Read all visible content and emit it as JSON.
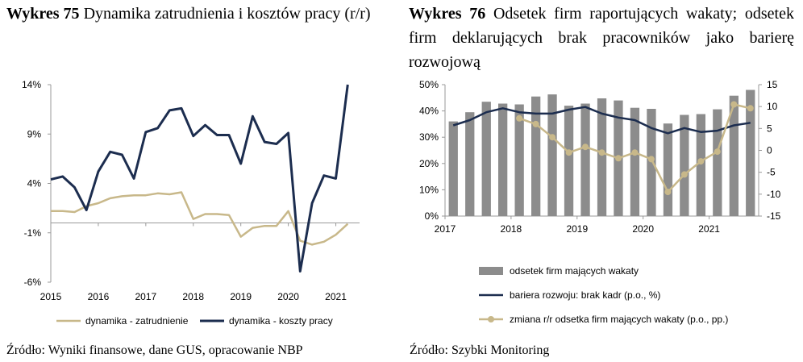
{
  "charts": [
    {
      "number": "Wykres 75",
      "title": "Dynamika zatrudnienia i kosztów pracy (r/r)",
      "source": "Źródło: Wyniki finansowe, dane GUS, opracowanie NBP"
    },
    {
      "number": "Wykres 76",
      "title": "Odsetek firm raportujących wakaty; odsetek firm deklarujących brak pracowników jako barierę rozwojową",
      "source": "Źródło: Szybki Monitoring"
    }
  ],
  "chart_data": [
    {
      "type": "line",
      "title": "Dynamika zatrudnienia i kosztów pracy (r/r)",
      "x_ticks": [
        "2015",
        "2016",
        "2017",
        "2018",
        "2019",
        "2020",
        "2021"
      ],
      "y_ticks": [
        "14%",
        "9%",
        "4%",
        "-1%",
        "-6%"
      ],
      "ylim": [
        -6,
        14
      ],
      "x_range": [
        2015.0,
        2021.5
      ],
      "legend_position": "bottom",
      "colors": {
        "dynamika - zatrudnienie": "#c8b88a",
        "dynamika - koszty pracy": "#1c2d4f"
      },
      "series": [
        {
          "name": "dynamika - zatrudnienie",
          "x": [
            2015.0,
            2015.25,
            2015.5,
            2015.75,
            2016.0,
            2016.25,
            2016.5,
            2016.75,
            2017.0,
            2017.25,
            2017.5,
            2017.75,
            2018.0,
            2018.25,
            2018.5,
            2018.75,
            2019.0,
            2019.25,
            2019.5,
            2019.75,
            2020.0,
            2020.25,
            2020.5,
            2020.75,
            2021.0,
            2021.25
          ],
          "values": [
            1.2,
            1.2,
            1.1,
            1.7,
            2.0,
            2.5,
            2.7,
            2.8,
            2.8,
            3.0,
            2.9,
            3.1,
            0.4,
            0.9,
            0.9,
            0.8,
            -1.4,
            -0.5,
            -0.3,
            -0.3,
            1.2,
            -1.8,
            -2.2,
            -1.9,
            -1.2,
            -0.1
          ]
        },
        {
          "name": "dynamika - koszty pracy",
          "x": [
            2015.0,
            2015.25,
            2015.5,
            2015.75,
            2016.0,
            2016.25,
            2016.5,
            2016.75,
            2017.0,
            2017.25,
            2017.5,
            2017.75,
            2018.0,
            2018.25,
            2018.5,
            2018.75,
            2019.0,
            2019.25,
            2019.5,
            2019.75,
            2020.0,
            2020.25,
            2020.5,
            2020.75,
            2021.0,
            2021.25
          ],
          "values": [
            4.4,
            4.7,
            3.6,
            1.3,
            5.2,
            7.2,
            6.9,
            4.5,
            9.2,
            9.6,
            11.4,
            11.6,
            8.8,
            9.9,
            8.9,
            8.9,
            6.0,
            10.8,
            8.2,
            8.0,
            9.1,
            -4.9,
            2.0,
            4.8,
            4.5,
            14.0
          ]
        }
      ]
    },
    {
      "type": "bar",
      "title": "Odsetek firm raportujących wakaty; odsetek firm deklarujących brak pracowników jako barierę rozwojową",
      "x_ticks": [
        "2017",
        "2018",
        "2019",
        "2020",
        "2021"
      ],
      "y_left_ticks": [
        "50%",
        "40%",
        "30%",
        "20%",
        "10%",
        "0%"
      ],
      "y_right_ticks": [
        "15",
        "10",
        "5",
        "0",
        "-5",
        "-10",
        "-15"
      ],
      "ylim_left": [
        0,
        50
      ],
      "ylim_right": [
        -15,
        15
      ],
      "x_range": [
        2017.0,
        2021.75
      ],
      "legend_position": "bottom",
      "colors": {
        "odsetek firm mających wakaty": "#8c8c8c",
        "bariera rozwoju: brak kadr (p.o., %)": "#1c2d4f",
        "zmiana r/r odsetka firm mających wakaty (p.o., pp.)": "#c8b88a"
      },
      "series": [
        {
          "name": "odsetek firm mających wakaty",
          "axis": "left",
          "type": "bar",
          "x": [
            2017.0,
            2017.25,
            2017.5,
            2017.75,
            2018.0,
            2018.25,
            2018.5,
            2018.75,
            2019.0,
            2019.25,
            2019.5,
            2019.75,
            2020.0,
            2020.25,
            2020.5,
            2020.75,
            2021.0,
            2021.25,
            2021.5
          ],
          "values": [
            36.0,
            39.5,
            43.5,
            42.8,
            42.5,
            45.5,
            46.3,
            42.0,
            42.8,
            44.8,
            44.0,
            41.2,
            40.8,
            35.2,
            38.5,
            38.8,
            40.6,
            45.8,
            48.0
          ]
        },
        {
          "name": "bariera rozwoju: brak kadr (p.o., %)",
          "axis": "left",
          "type": "line",
          "x": [
            2017.0,
            2017.25,
            2017.5,
            2017.75,
            2018.0,
            2018.25,
            2018.5,
            2018.75,
            2019.0,
            2019.25,
            2019.5,
            2019.75,
            2020.0,
            2020.25,
            2020.5,
            2020.75,
            2021.0,
            2021.25,
            2021.5
          ],
          "values": [
            34.5,
            36.5,
            39.5,
            41.0,
            39.5,
            39.0,
            39.0,
            40.5,
            41.5,
            39.0,
            37.5,
            36.5,
            33.5,
            31.5,
            33.5,
            32.0,
            32.5,
            34.5,
            35.5
          ]
        },
        {
          "name": "zmiana r/r odsetka firm mających wakaty (p.o., pp.)",
          "axis": "right",
          "type": "line",
          "x": [
            2018.0,
            2018.25,
            2018.5,
            2018.75,
            2019.0,
            2019.25,
            2019.5,
            2019.75,
            2020.0,
            2020.25,
            2020.5,
            2020.75,
            2021.0,
            2021.25,
            2021.5
          ],
          "values": [
            7.3,
            6.0,
            3.0,
            -0.5,
            0.8,
            -0.5,
            -1.8,
            -0.5,
            -2.0,
            -9.5,
            -5.5,
            -2.5,
            -0.3,
            10.5,
            9.6
          ]
        }
      ]
    }
  ]
}
